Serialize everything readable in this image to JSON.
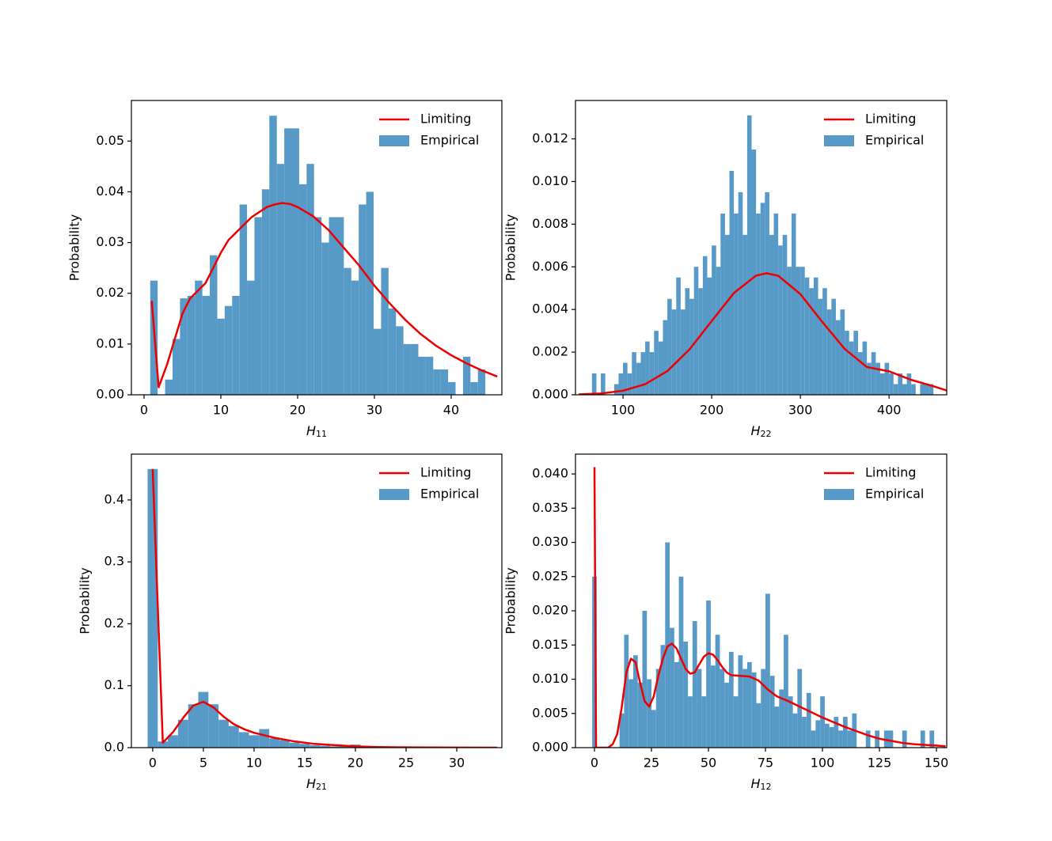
{
  "chart_data": [
    {
      "type": "histogram",
      "ylabel": "Probability",
      "xlabel": "H",
      "xlabel_subscript": "11",
      "legend": "upper right",
      "xlim": [
        -1.65,
        46.6
      ],
      "ylim": [
        0,
        0.058
      ],
      "xticks": [
        0,
        10,
        20,
        30,
        40
      ],
      "yticks": [
        {
          "value": 0,
          "label": "0.00"
        },
        {
          "value": 0.01,
          "label": "0.01"
        },
        {
          "value": 0.02,
          "label": "0.02"
        },
        {
          "value": 0.03,
          "label": "0.03"
        },
        {
          "value": 0.04,
          "label": "0.04"
        },
        {
          "value": 0.05,
          "label": "0.05"
        }
      ],
      "name": "Empirical",
      "color": "#5799c7",
      "bins": [
        0.8,
        1.77,
        2.74,
        3.71,
        4.68,
        5.65,
        6.62,
        7.59,
        8.56,
        9.53,
        10.5,
        11.47,
        12.44,
        13.41,
        14.38,
        15.35,
        16.32,
        17.29,
        18.26,
        19.23,
        20.2,
        21.17,
        22.14,
        23.11,
        24.08,
        25.05,
        26.02,
        26.99,
        27.96,
        28.93,
        29.9,
        30.87,
        31.84,
        32.81,
        33.78,
        34.75,
        35.72,
        36.69,
        37.66,
        38.63,
        39.6,
        40.57,
        41.54,
        42.51,
        43.48,
        44.45
      ],
      "counts": [
        0.0225,
        0,
        0.003,
        0.011,
        0.019,
        0.0195,
        0.0225,
        0.0195,
        0.0275,
        0.015,
        0.0175,
        0.0195,
        0.0375,
        0.0225,
        0.035,
        0.0405,
        0.055,
        0.0455,
        0.0525,
        0.0525,
        0.0415,
        0.0455,
        0.035,
        0.03,
        0.035,
        0.035,
        0.025,
        0.0225,
        0.0375,
        0.04,
        0.013,
        0.025,
        0.017,
        0.0135,
        0.01,
        0.01,
        0.0075,
        0.0075,
        0.005,
        0.005,
        0.0025,
        0,
        0.0075,
        0.0025,
        0.005
      ],
      "lines": [
        {
          "name": "Limiting",
          "color": "#ee0000",
          "x": [
            1,
            1.9,
            3,
            4,
            5,
            6,
            7,
            8,
            9,
            10,
            11,
            12,
            13,
            14,
            15,
            16,
            17,
            18,
            19,
            20,
            22,
            24,
            26,
            28,
            30,
            32,
            34,
            36,
            38,
            40,
            42,
            44,
            46
          ],
          "values": [
            0.0185,
            0.0015,
            0.006,
            0.011,
            0.016,
            0.019,
            0.0205,
            0.022,
            0.025,
            0.028,
            0.0305,
            0.032,
            0.0335,
            0.035,
            0.036,
            0.037,
            0.0375,
            0.0378,
            0.0376,
            0.037,
            0.0352,
            0.0325,
            0.029,
            0.0255,
            0.0215,
            0.018,
            0.0148,
            0.012,
            0.0097,
            0.0078,
            0.0062,
            0.0048,
            0.0036
          ]
        }
      ]
    },
    {
      "type": "histogram",
      "ylabel": "Probability",
      "xlabel": "H",
      "xlabel_subscript": "22",
      "legend": "upper right",
      "xlim": [
        46.4,
        465
      ],
      "ylim": [
        0,
        0.0138
      ],
      "xticks": [
        100,
        200,
        300,
        400
      ],
      "yticks": [
        {
          "value": 0,
          "label": "0.000"
        },
        {
          "value": 0.002,
          "label": "0.002"
        },
        {
          "value": 0.004,
          "label": "0.004"
        },
        {
          "value": 0.006,
          "label": "0.006"
        },
        {
          "value": 0.008,
          "label": "0.008"
        },
        {
          "value": 0.01,
          "label": "0.010"
        },
        {
          "value": 0.012,
          "label": "0.012"
        }
      ],
      "name": "Empirical",
      "color": "#5799c7",
      "bins": [
        65,
        70,
        75,
        80,
        85,
        90,
        95,
        100,
        105,
        110,
        115,
        120,
        125,
        130,
        135,
        140,
        145,
        150,
        155,
        160,
        165,
        170,
        175,
        180,
        185,
        190,
        195,
        200,
        205,
        210,
        215,
        220,
        225,
        230,
        235,
        240,
        245,
        250,
        255,
        260,
        265,
        270,
        275,
        280,
        285,
        290,
        295,
        300,
        305,
        310,
        315,
        320,
        325,
        330,
        335,
        340,
        345,
        350,
        355,
        360,
        365,
        370,
        375,
        380,
        385,
        390,
        395,
        400,
        405,
        410,
        415,
        420,
        425,
        430,
        435,
        440,
        445,
        450
      ],
      "counts": [
        0.001,
        0,
        0.001,
        0,
        0,
        0.0005,
        0.001,
        0.0015,
        0.001,
        0.002,
        0.0015,
        0.002,
        0.0025,
        0.002,
        0.003,
        0.0025,
        0.0035,
        0.0045,
        0.004,
        0.0055,
        0.004,
        0.005,
        0.0045,
        0.006,
        0.005,
        0.0065,
        0.0055,
        0.007,
        0.006,
        0.0085,
        0.0075,
        0.0105,
        0.0085,
        0.0095,
        0.0075,
        0.0131,
        0.0115,
        0.0085,
        0.009,
        0.0095,
        0.0075,
        0.0085,
        0.007,
        0.0075,
        0.006,
        0.0085,
        0.006,
        0.006,
        0.0055,
        0.005,
        0.0055,
        0.0045,
        0.005,
        0.004,
        0.0045,
        0.0035,
        0.004,
        0.003,
        0.0025,
        0.003,
        0.002,
        0.0025,
        0.0015,
        0.002,
        0.0015,
        0.001,
        0.0015,
        0.001,
        0.0005,
        0.001,
        0.0005,
        0.001,
        0.0005,
        0,
        0.0005,
        0.0005,
        0.0005
      ],
      "lines": [
        {
          "name": "Limiting",
          "color": "#ee0000",
          "x": [
            50,
            75,
            100,
            125,
            150,
            175,
            200,
            225,
            250,
            262,
            275,
            300,
            325,
            350,
            375,
            400,
            425,
            450,
            465
          ],
          "values": [
            2e-05,
            6e-05,
            0.00019,
            0.0005,
            0.00111,
            0.00213,
            0.00346,
            0.00477,
            0.00559,
            0.0057,
            0.00558,
            0.00472,
            0.0034,
            0.00215,
            0.0013,
            0.0011,
            0.0007,
            0.0004,
            0.0002
          ]
        }
      ]
    },
    {
      "type": "histogram",
      "ylabel": "Probability",
      "xlabel": "H",
      "xlabel_subscript": "21",
      "legend": "upper right",
      "xlim": [
        -2.1,
        34.45
      ],
      "ylim": [
        0,
        0.474
      ],
      "xticks": [
        0,
        5,
        10,
        15,
        20,
        25,
        30
      ],
      "yticks": [
        {
          "value": 0,
          "label": "0.0"
        },
        0.1,
        0.2,
        0.3,
        0.4
      ],
      "name": "Empirical",
      "color": "#5799c7",
      "bins": [
        -0.5,
        0.5,
        1.5,
        2.5,
        3.5,
        4.5,
        5.5,
        6.5,
        7.5,
        8.5,
        9.5,
        10.5,
        11.5,
        12.5,
        13.5,
        14.5,
        15.5,
        16.5,
        17.5,
        18.5,
        19.5,
        20.5
      ],
      "counts": [
        0.45,
        0.01,
        0.02,
        0.045,
        0.07,
        0.09,
        0.07,
        0.045,
        0.035,
        0.025,
        0.02,
        0.03,
        0.015,
        0.012,
        0.008,
        0.006,
        0.004,
        0.003,
        0.002,
        0.002,
        0.005
      ],
      "lines": [
        {
          "name": "Limiting",
          "color": "#ee0000",
          "x": [
            0,
            1,
            2,
            3,
            4,
            5,
            6,
            7,
            8,
            9,
            10,
            12,
            14,
            16,
            18,
            20,
            22,
            25,
            30,
            34
          ],
          "values": [
            0.45,
            0.008,
            0.025,
            0.048,
            0.068,
            0.074,
            0.065,
            0.05,
            0.038,
            0.03,
            0.024,
            0.016,
            0.01,
            0.006,
            0.004,
            0.002,
            0.001,
            0.0005,
            0.0001,
            0
          ]
        }
      ]
    },
    {
      "type": "histogram",
      "ylabel": "Probability",
      "xlabel": "H",
      "xlabel_subscript": "12",
      "legend": "upper right",
      "xlim": [
        -8.33,
        154.5
      ],
      "ylim": [
        0,
        0.0429
      ],
      "xticks": [
        0,
        25,
        50,
        75,
        100,
        125,
        150
      ],
      "yticks": [
        {
          "value": 0,
          "label": "0.000"
        },
        {
          "value": 0.005,
          "label": "0.005"
        },
        {
          "value": 0.01,
          "label": "0.010"
        },
        {
          "value": 0.015,
          "label": "0.015"
        },
        {
          "value": 0.02,
          "label": "0.020"
        },
        {
          "value": 0.025,
          "label": "0.025"
        },
        {
          "value": 0.03,
          "label": "0.030"
        },
        {
          "value": 0.035,
          "label": "0.035"
        },
        {
          "value": 0.04,
          "label": "0.040"
        }
      ],
      "name": "Empirical",
      "color": "#5799c7",
      "bins": [
        -1,
        1,
        3,
        5,
        7,
        9,
        11,
        13,
        15,
        17,
        19,
        21,
        23,
        25,
        27,
        29,
        31,
        33,
        35,
        37,
        39,
        41,
        43,
        45,
        47,
        49,
        51,
        53,
        55,
        57,
        59,
        61,
        63,
        65,
        67,
        69,
        71,
        73,
        75,
        77,
        79,
        81,
        83,
        85,
        87,
        89,
        91,
        93,
        95,
        97,
        99,
        101,
        103,
        105,
        107,
        109,
        111,
        113,
        115,
        117,
        119,
        121,
        123,
        125,
        127,
        129,
        131,
        133,
        135,
        137,
        139,
        141,
        143,
        145,
        147,
        149,
        151
      ],
      "counts": [
        0.025,
        0,
        0,
        0,
        0,
        0,
        0.005,
        0.0165,
        0.01,
        0.0135,
        0.0095,
        0.02,
        0.01,
        0.0055,
        0.0115,
        0.015,
        0.03,
        0.0175,
        0.0125,
        0.025,
        0.0155,
        0.0075,
        0.0185,
        0.0115,
        0.0075,
        0.0215,
        0.012,
        0.0165,
        0.0115,
        0.0095,
        0.014,
        0.0075,
        0.0135,
        0.0115,
        0.0125,
        0.011,
        0.0065,
        0.0115,
        0.0225,
        0.0105,
        0.006,
        0.0085,
        0.0165,
        0.0075,
        0.005,
        0.0115,
        0.0045,
        0.008,
        0.0025,
        0.004,
        0.0075,
        0.0035,
        0.003,
        0.0045,
        0.0025,
        0.0045,
        0.0025,
        0.005,
        0,
        0,
        0.0025,
        0,
        0.0025,
        0,
        0.0025,
        0.0025,
        0,
        0,
        0.0025,
        0,
        0,
        0,
        0.0025,
        0,
        0.0025,
        0
      ],
      "lines": [
        {
          "name": "Limiting",
          "color": "#ee0000",
          "x": [
            0,
            0.7,
            2,
            6,
            8,
            10,
            12,
            14,
            16,
            18,
            20,
            22,
            24,
            26,
            28,
            30,
            32,
            34,
            36,
            38,
            40,
            42,
            44,
            46,
            48,
            50,
            52,
            54,
            56,
            58,
            60,
            64,
            68,
            72,
            76,
            80,
            85,
            90,
            95,
            100,
            105,
            110,
            115,
            120,
            125,
            130,
            135,
            140,
            145,
            150,
            154
          ],
          "values": [
            0.041,
            0,
            0,
            0,
            0.0005,
            0.002,
            0.006,
            0.011,
            0.013,
            0.0125,
            0.0095,
            0.0068,
            0.006,
            0.0075,
            0.0105,
            0.013,
            0.0148,
            0.0152,
            0.0145,
            0.013,
            0.0115,
            0.0108,
            0.011,
            0.0122,
            0.0133,
            0.0138,
            0.0136,
            0.0128,
            0.0118,
            0.011,
            0.0106,
            0.0105,
            0.0104,
            0.0098,
            0.0085,
            0.0075,
            0.0068,
            0.006,
            0.0052,
            0.0044,
            0.0037,
            0.003,
            0.0024,
            0.0018,
            0.0013,
            0.001,
            0.0007,
            0.0005,
            0.0004,
            0.0003,
            0.0002
          ]
        }
      ]
    }
  ]
}
